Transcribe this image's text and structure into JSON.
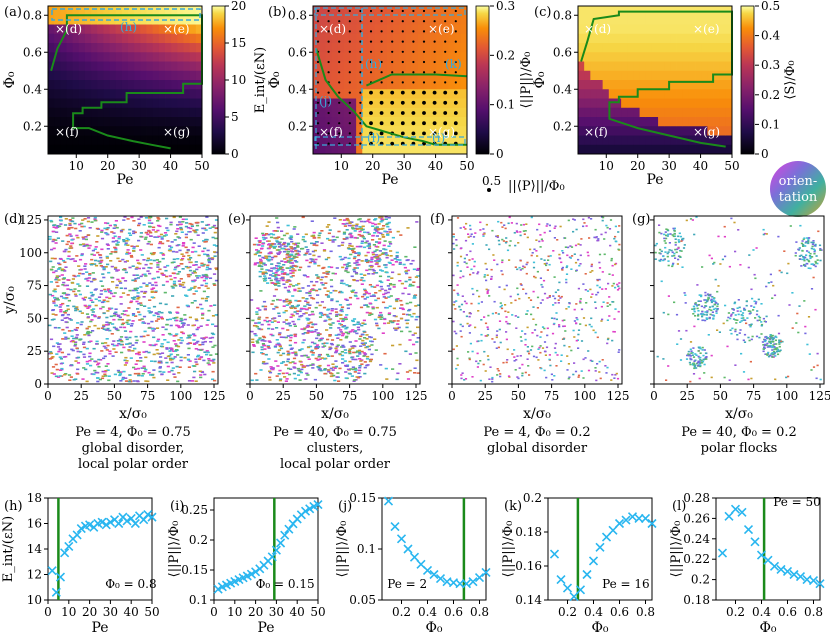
{
  "panel_letters": [
    "(a)",
    "(b)",
    "(c)",
    "(d)",
    "(e)",
    "(f)",
    "(g)",
    "(h)",
    "(i)",
    "(j)",
    "(k)",
    "(l)"
  ],
  "orientation_badge": {
    "line1": "orien-",
    "line2": "tation"
  },
  "arrow_legend": {
    "value": "0.5",
    "label": "||⟨P⟩||/Φ₀"
  },
  "state_labels": {
    "d": "×(d)",
    "e": "×(e)",
    "f": "×(f)",
    "g": "×(g)",
    "h": "(h)",
    "i": "(i)",
    "j": "(j)",
    "k": "(k)",
    "l": "(l)"
  },
  "colors": {
    "green": "#1a8a1a",
    "cyan": "#25b8e8",
    "crossblue": "#29b6f0",
    "dashed": "#3aa8d8",
    "dot": "#000000"
  },
  "snapshots": [
    {
      "id": "d",
      "caption": [
        "Pe = 4, Φ₀ = 0.75",
        "global disorder,",
        "local polar order"
      ]
    },
    {
      "id": "e",
      "caption": [
        "Pe = 40, Φ₀ = 0.75",
        "clusters,",
        "local polar order"
      ]
    },
    {
      "id": "f",
      "caption": [
        "Pe = 4, Φ₀ = 0.2",
        "global disorder"
      ]
    },
    {
      "id": "g",
      "caption": [
        "Pe = 40, Φ₀ = 0.2",
        "polar flocks"
      ]
    }
  ],
  "chart_data": [
    {
      "id": "a",
      "type": "heatmap",
      "xlabel": "Pe",
      "ylabel": "Φ₀",
      "xticks": [
        10,
        20,
        30,
        40,
        50
      ],
      "yticks": [
        0.2,
        0.4,
        0.6,
        0.8
      ],
      "xlim": [
        1,
        50
      ],
      "ylim": [
        0.05,
        0.85
      ],
      "colorbar": {
        "label": "E_int/(εN)",
        "range": [
          0,
          20
        ],
        "ticks": [
          0,
          5,
          10,
          15,
          20
        ],
        "cmap": "inferno"
      }
    },
    {
      "id": "b",
      "type": "heatmap",
      "xlabel": "Pe",
      "ylabel": "Φ₀",
      "xticks": [
        10,
        20,
        30,
        40,
        50
      ],
      "yticks": [
        0.2,
        0.4,
        0.6,
        0.8
      ],
      "xlim": [
        1,
        50
      ],
      "ylim": [
        0.05,
        0.85
      ],
      "colorbar": {
        "label": "⟨||P||⟩/Φ₀",
        "range": [
          0,
          0.3
        ],
        "ticks": [
          0,
          0.1,
          0.2,
          0.3
        ],
        "cmap": "inferno"
      }
    },
    {
      "id": "c",
      "type": "heatmap",
      "xlabel": "Pe",
      "ylabel": "Φ₀",
      "xticks": [
        10,
        20,
        30,
        40,
        50
      ],
      "yticks": [
        0.2,
        0.4,
        0.6,
        0.8
      ],
      "xlim": [
        1,
        50
      ],
      "ylim": [
        0.05,
        0.85
      ],
      "colorbar": {
        "label": "⟨S⟩/Φ₀",
        "range": [
          0,
          0.5
        ],
        "ticks": [
          0,
          0.1,
          0.2,
          0.3,
          0.4,
          0.5
        ],
        "cmap": "inferno"
      }
    },
    {
      "id": "d-g",
      "type": "scatter",
      "xlabel": "x/σ₀",
      "ylabel": "y/σ₀",
      "xticks": [
        0,
        25,
        50,
        75,
        100,
        125
      ],
      "yticks": [
        0,
        25,
        50,
        75,
        100,
        125
      ],
      "xlim": [
        0,
        128
      ],
      "ylim": [
        0,
        128
      ]
    },
    {
      "id": "h",
      "type": "scatter",
      "xlabel": "Pe",
      "ylabel": "E_int/(εN)",
      "annotation": "Φ₀ = 0.8",
      "xlim": [
        0,
        50
      ],
      "ylim": [
        10,
        18
      ],
      "xticks": [
        0,
        10,
        20,
        30,
        40,
        50
      ],
      "yticks": [
        10,
        12,
        14,
        16,
        18
      ],
      "vline": 5,
      "x": [
        2,
        4,
        6,
        8,
        10,
        12,
        14,
        16,
        18,
        20,
        22,
        24,
        26,
        28,
        30,
        32,
        34,
        36,
        38,
        40,
        42,
        44,
        46,
        48,
        50
      ],
      "y": [
        12.3,
        10.6,
        11.8,
        13.7,
        14.2,
        14.8,
        15.1,
        15.6,
        15.8,
        15.9,
        15.7,
        16.0,
        16.1,
        15.9,
        16.1,
        16.3,
        16.0,
        16.5,
        16.2,
        16.4,
        16.0,
        16.6,
        16.3,
        16.7,
        16.5
      ]
    },
    {
      "id": "i",
      "type": "scatter",
      "xlabel": "Pe",
      "ylabel": "⟨||P||⟩/Φ₀",
      "annotation": "Φ₀ = 0.15",
      "xlim": [
        0,
        50
      ],
      "ylim": [
        0.1,
        0.27
      ],
      "xticks": [
        0,
        10,
        20,
        30,
        40,
        50
      ],
      "yticks": [
        0.1,
        0.15,
        0.2,
        0.25
      ],
      "vline": 29,
      "x": [
        2,
        4,
        6,
        8,
        10,
        12,
        14,
        16,
        18,
        20,
        22,
        24,
        26,
        28,
        30,
        32,
        34,
        36,
        38,
        40,
        42,
        44,
        46,
        48,
        50
      ],
      "y": [
        0.118,
        0.122,
        0.125,
        0.128,
        0.131,
        0.134,
        0.137,
        0.14,
        0.143,
        0.147,
        0.152,
        0.158,
        0.165,
        0.172,
        0.183,
        0.195,
        0.208,
        0.218,
        0.227,
        0.235,
        0.242,
        0.248,
        0.252,
        0.256,
        0.259
      ]
    },
    {
      "id": "j",
      "type": "scatter",
      "xlabel": "Φ₀",
      "ylabel": "⟨||P||⟩/Φ₀",
      "annotation": "Pe = 2",
      "xlim": [
        0.05,
        0.85
      ],
      "ylim": [
        0.05,
        0.15
      ],
      "xticks": [
        0.2,
        0.4,
        0.6,
        0.8
      ],
      "yticks": [
        0.05,
        0.1,
        0.15
      ],
      "vline": 0.68,
      "x": [
        0.1,
        0.15,
        0.2,
        0.25,
        0.3,
        0.35,
        0.4,
        0.45,
        0.5,
        0.55,
        0.6,
        0.65,
        0.7,
        0.75,
        0.8,
        0.85
      ],
      "y": [
        0.147,
        0.122,
        0.11,
        0.1,
        0.092,
        0.085,
        0.079,
        0.075,
        0.071,
        0.068,
        0.067,
        0.066,
        0.066,
        0.068,
        0.072,
        0.077
      ]
    },
    {
      "id": "k",
      "type": "scatter",
      "xlabel": "Φ₀",
      "ylabel": "⟨||P||⟩/Φ₀",
      "annotation": "Pe = 16",
      "xlim": [
        0.05,
        0.85
      ],
      "ylim": [
        0.14,
        0.2
      ],
      "xticks": [
        0.2,
        0.4,
        0.6,
        0.8
      ],
      "yticks": [
        0.14,
        0.16,
        0.18,
        0.2
      ],
      "vline": 0.28,
      "x": [
        0.1,
        0.15,
        0.2,
        0.25,
        0.3,
        0.35,
        0.4,
        0.45,
        0.5,
        0.55,
        0.6,
        0.65,
        0.7,
        0.75,
        0.8,
        0.85
      ],
      "y": [
        0.167,
        0.152,
        0.147,
        0.142,
        0.146,
        0.155,
        0.163,
        0.171,
        0.177,
        0.181,
        0.185,
        0.187,
        0.189,
        0.188,
        0.188,
        0.185
      ]
    },
    {
      "id": "l",
      "type": "scatter",
      "xlabel": "Φ₀",
      "ylabel": "⟨||P||⟩/Φ₀",
      "annotation": "Pe = 50",
      "xlim": [
        0.05,
        0.85
      ],
      "ylim": [
        0.18,
        0.28
      ],
      "xticks": [
        0.2,
        0.4,
        0.6,
        0.8
      ],
      "yticks": [
        0.18,
        0.2,
        0.22,
        0.24,
        0.26,
        0.28
      ],
      "vline": 0.42,
      "x": [
        0.1,
        0.15,
        0.2,
        0.25,
        0.3,
        0.35,
        0.4,
        0.45,
        0.5,
        0.55,
        0.6,
        0.65,
        0.7,
        0.75,
        0.8,
        0.85
      ],
      "y": [
        0.226,
        0.262,
        0.269,
        0.266,
        0.249,
        0.237,
        0.224,
        0.219,
        0.213,
        0.21,
        0.208,
        0.205,
        0.203,
        0.2,
        0.199,
        0.196
      ]
    }
  ]
}
